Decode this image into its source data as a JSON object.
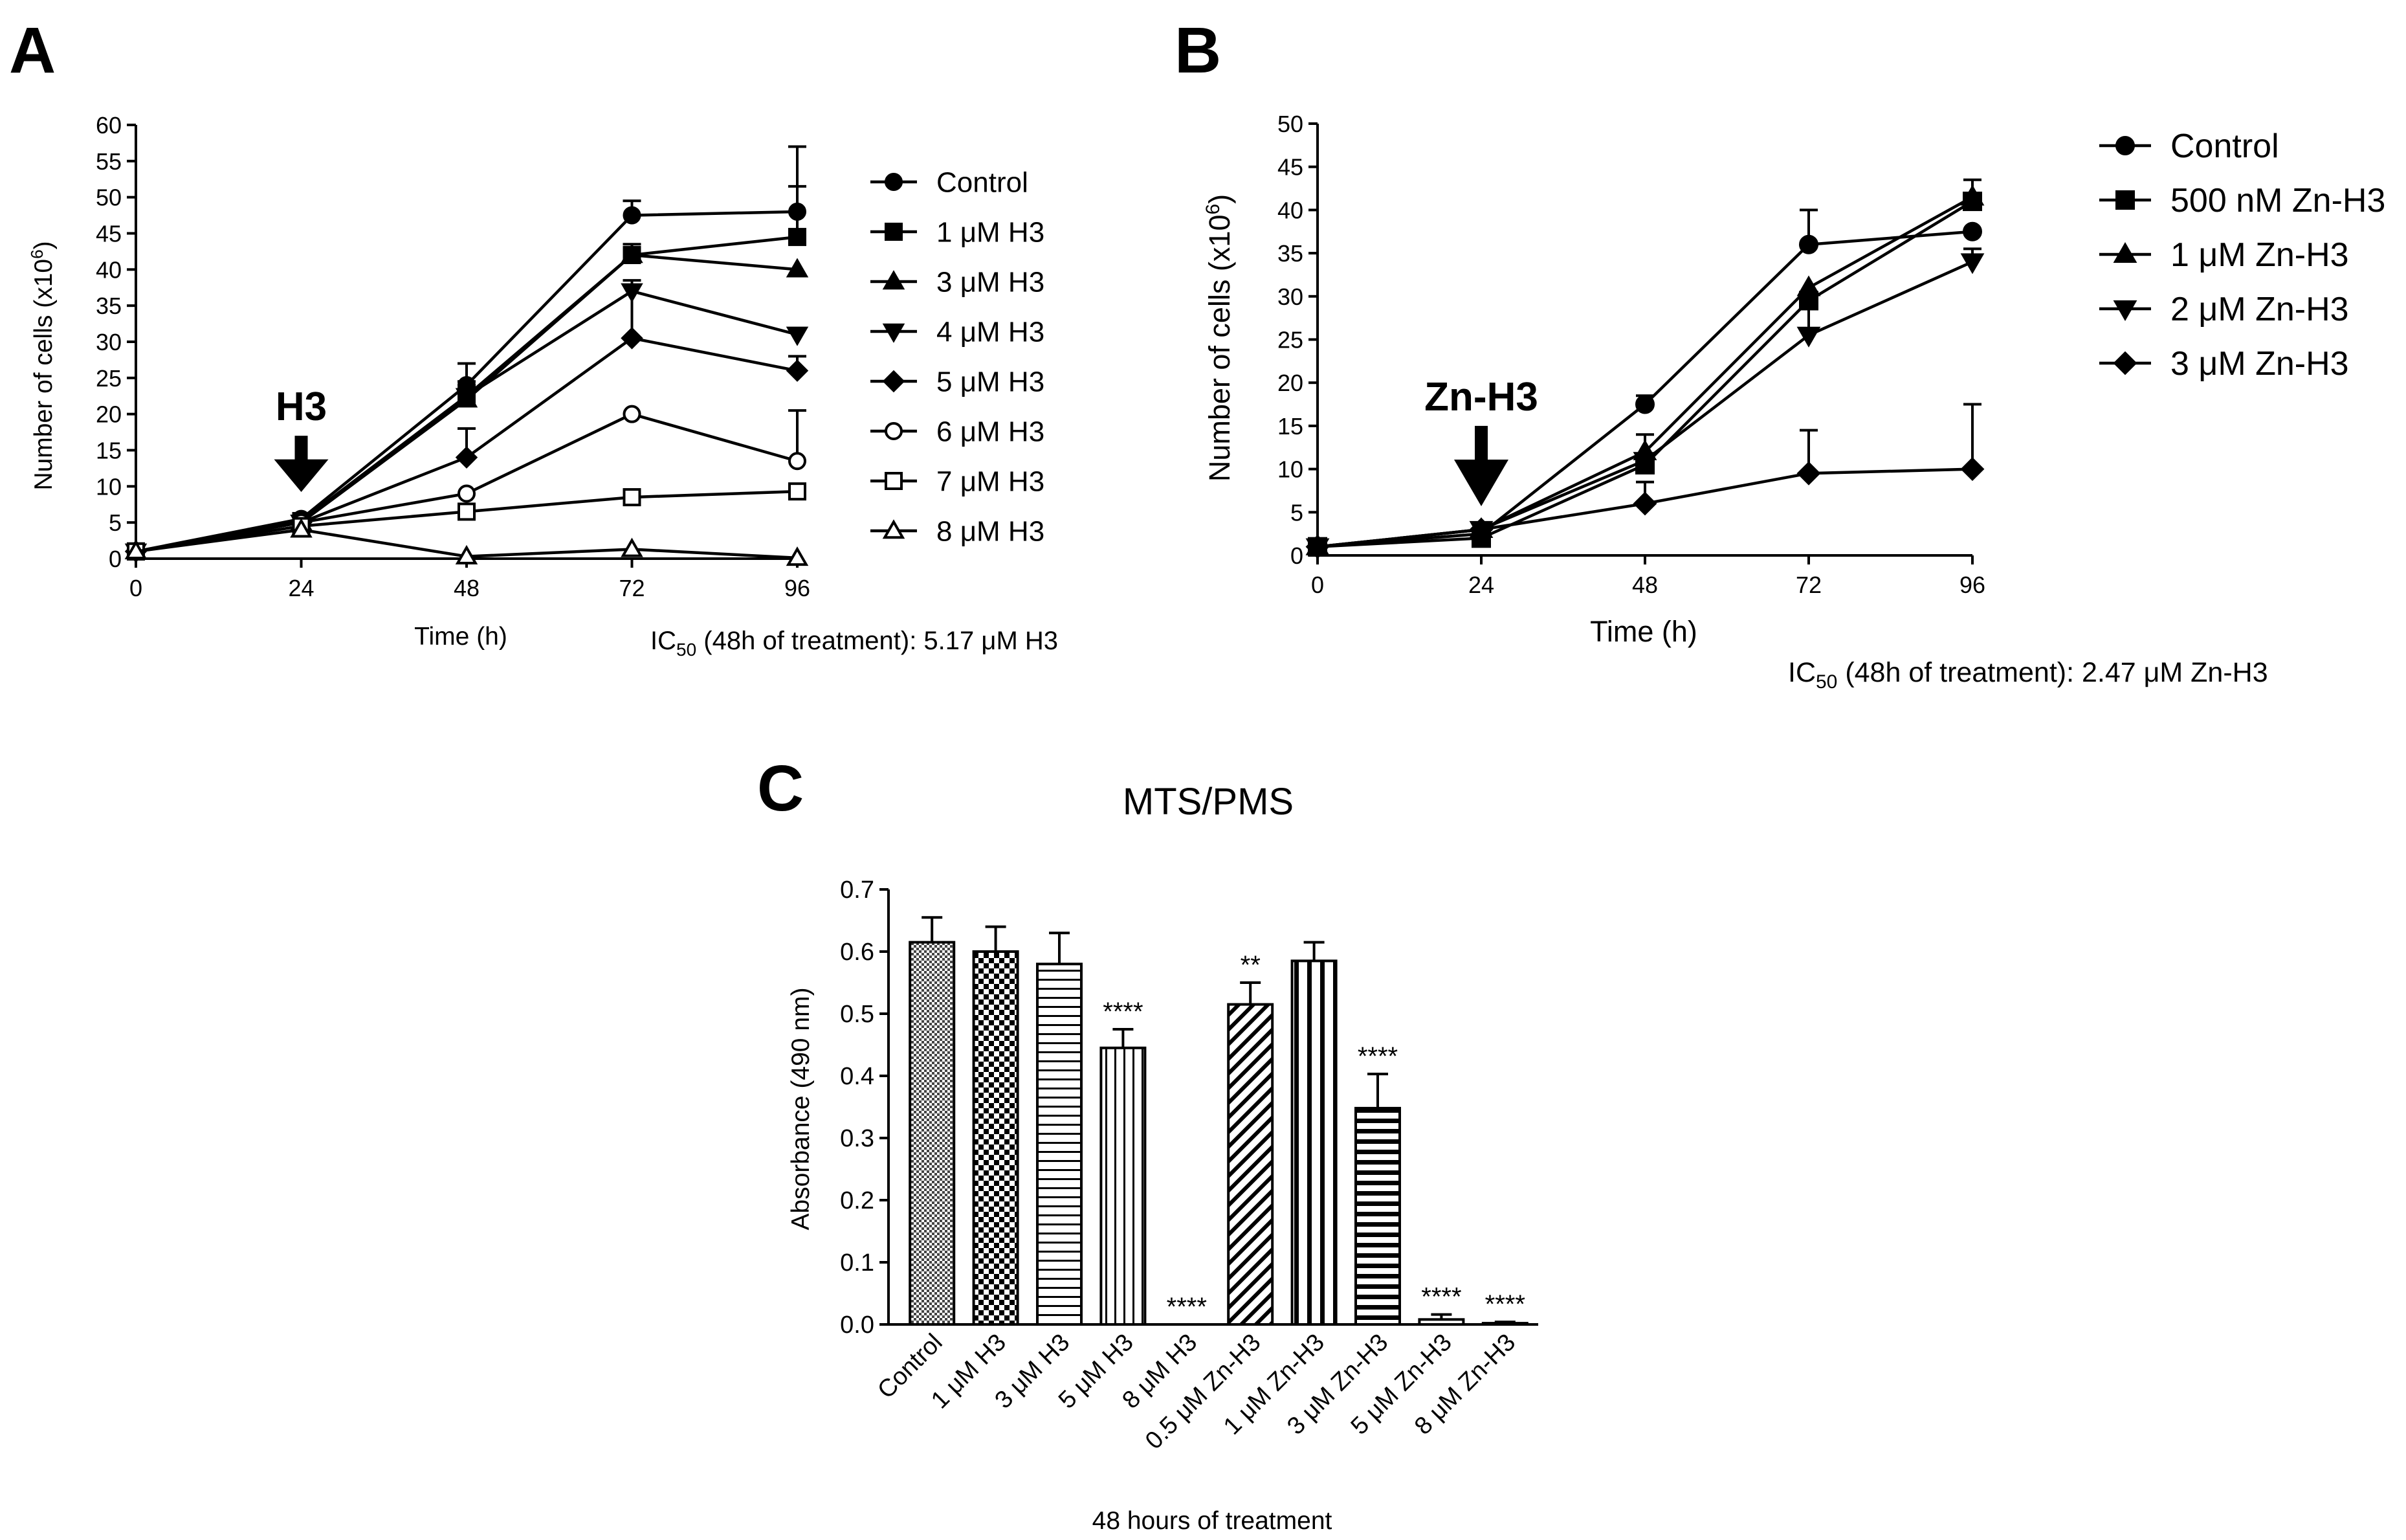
{
  "panels": {
    "a": "A",
    "b": "B",
    "c": "C"
  },
  "panel_a": {
    "ylabel": "Number of cells (x10",
    "ylabel_sup": "6",
    "ylabel_end": ")",
    "xlabel": "Time (h)",
    "arrow_label": "H3",
    "ic50_pre": "IC",
    "ic50_sub": "50",
    "ic50_post": " (48h of treatment): 5.17 μM H3"
  },
  "panel_b": {
    "ylabel": "Number of cells (x10",
    "ylabel_sup": "6",
    "ylabel_end": ")",
    "xlabel": "Time (h)",
    "arrow_label": "Zn-H3",
    "ic50_pre": "IC",
    "ic50_sub": "50",
    "ic50_post": " (48h of treatment): 2.47 μM Zn-H3"
  },
  "panel_c": {
    "title": "MTS/PMS",
    "ylabel": "Absorbance (490 nm)",
    "xlabel": "48 hours of treatment"
  },
  "chart_data": [
    {
      "id": "A",
      "type": "line",
      "title": "",
      "xlabel": "Time (h)",
      "ylabel": "Number of cells (x10^6)",
      "x": [
        0,
        24,
        48,
        72,
        96
      ],
      "xlim": [
        0,
        96
      ],
      "ylim": [
        0,
        60
      ],
      "xticks": [
        0,
        24,
        48,
        72,
        96
      ],
      "yticks": [
        0,
        5,
        10,
        15,
        20,
        25,
        30,
        35,
        40,
        45,
        50,
        55,
        60
      ],
      "annotations": [
        {
          "text": "H3",
          "x": 24,
          "y": 17,
          "kind": "arrow-down"
        }
      ],
      "series": [
        {
          "name": "Control",
          "marker": "circle",
          "fill": "filled",
          "values": [
            1,
            5.5,
            24,
            47.5,
            48
          ],
          "err": [
            0,
            0.5,
            3,
            2,
            9
          ]
        },
        {
          "name": "1 μM H3",
          "marker": "square",
          "fill": "filled",
          "values": [
            1,
            5.2,
            22.5,
            42,
            44.5
          ],
          "err": [
            0,
            0.5,
            2,
            1.5,
            7
          ]
        },
        {
          "name": "3 μM H3",
          "marker": "triangle-up",
          "fill": "filled",
          "values": [
            1,
            5,
            22,
            42,
            40
          ],
          "err": [
            0,
            0.5,
            2,
            1,
            0
          ]
        },
        {
          "name": "4 μM H3",
          "marker": "triangle-down",
          "fill": "filled",
          "values": [
            1,
            5,
            22.5,
            37,
            31
          ],
          "err": [
            0,
            0.5,
            2,
            0,
            0
          ]
        },
        {
          "name": "5 μM H3",
          "marker": "diamond",
          "fill": "filled",
          "values": [
            1,
            5,
            14,
            30.5,
            26
          ],
          "err": [
            0,
            0.5,
            4,
            8,
            2
          ]
        },
        {
          "name": "6 μM H3",
          "marker": "circle",
          "fill": "open",
          "values": [
            1,
            5,
            9,
            20,
            13.5
          ],
          "err": [
            0,
            0.5,
            0,
            0,
            7
          ]
        },
        {
          "name": "7 μM H3",
          "marker": "square",
          "fill": "open",
          "values": [
            1,
            4.5,
            6.5,
            8.5,
            9.3
          ],
          "err": [
            0,
            0,
            0,
            0,
            0
          ]
        },
        {
          "name": "8 μM H3",
          "marker": "triangle-up",
          "fill": "open",
          "values": [
            1,
            4,
            0.3,
            1.3,
            0.1
          ],
          "err": [
            0,
            0,
            0,
            0,
            0
          ]
        }
      ]
    },
    {
      "id": "B",
      "type": "line",
      "title": "",
      "xlabel": "Time (h)",
      "ylabel": "Number of cells (x10^6)",
      "x": [
        0,
        24,
        48,
        72,
        96
      ],
      "xlim": [
        0,
        96
      ],
      "ylim": [
        0,
        50
      ],
      "xticks": [
        0,
        24,
        48,
        72,
        96
      ],
      "yticks": [
        0,
        5,
        10,
        15,
        20,
        25,
        30,
        35,
        40,
        45,
        50
      ],
      "annotations": [
        {
          "text": "Zn-H3",
          "x": 24,
          "y": 15,
          "kind": "arrow-down"
        }
      ],
      "series": [
        {
          "name": "Control",
          "marker": "circle",
          "fill": "filled",
          "values": [
            1,
            2.5,
            17.5,
            36,
            37.5
          ],
          "err": [
            0,
            0,
            1,
            4,
            0
          ]
        },
        {
          "name": "500 nM Zn-H3",
          "marker": "square",
          "fill": "filled",
          "values": [
            1,
            2,
            10.5,
            29.5,
            41
          ],
          "err": [
            0,
            0,
            0,
            0,
            2.5
          ]
        },
        {
          "name": "1 μM Zn-H3",
          "marker": "triangle-up",
          "fill": "filled",
          "values": [
            1,
            3,
            12,
            31,
            41.5
          ],
          "err": [
            0,
            0,
            2,
            0,
            0
          ]
        },
        {
          "name": "2 μM Zn-H3",
          "marker": "triangle-down",
          "fill": "filled",
          "values": [
            1,
            3,
            11,
            25.5,
            34
          ],
          "err": [
            0,
            0,
            0,
            5,
            1.5
          ]
        },
        {
          "name": "3 μM Zn-H3",
          "marker": "diamond",
          "fill": "filled",
          "values": [
            1,
            3,
            6,
            9.5,
            10
          ],
          "err": [
            0,
            0,
            2.5,
            5,
            7.5
          ]
        }
      ]
    },
    {
      "id": "C",
      "type": "bar",
      "title": "MTS/PMS",
      "xlabel": "48 hours of treatment",
      "ylabel": "Absorbance (490 nm)",
      "ylim": [
        0,
        0.7
      ],
      "yticks": [
        "0.0",
        "0.1",
        "0.2",
        "0.3",
        "0.4",
        "0.5",
        "0.6",
        "0.7"
      ],
      "categories": [
        "Control",
        "1 μM H3",
        "3 μM H3",
        "5 μM H3",
        "8 μM H3",
        "0.5 μM Zn-H3",
        "1 μM Zn-H3",
        "3 μM Zn-H3",
        "5 μM Zn-H3",
        "8 μM Zn-H3"
      ],
      "values": [
        0.615,
        0.6,
        0.58,
        0.445,
        0.0,
        0.515,
        0.585,
        0.348,
        0.008,
        0.002
      ],
      "errors": [
        0.04,
        0.04,
        0.05,
        0.03,
        0.0,
        0.035,
        0.03,
        0.055,
        0.008,
        0.002
      ],
      "significance": [
        "",
        "",
        "",
        "****",
        "****",
        "**",
        "",
        "****",
        "****",
        "****"
      ],
      "patterns": [
        "fine-checker",
        "checker",
        "horizontal",
        "vertical",
        "none",
        "diagonal",
        "vertical-bold",
        "horizontal-bold",
        "none",
        "none"
      ]
    }
  ]
}
